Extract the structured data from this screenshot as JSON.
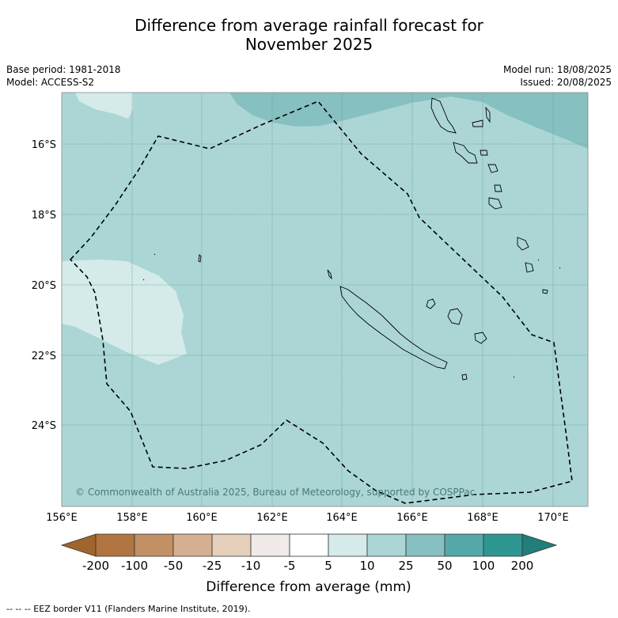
{
  "header": {
    "title_line1": "Difference from average rainfall forecast for",
    "title_line2": "November 2025",
    "base_period": "Base period: 1981-2018",
    "model": "Model: ACCESS-S2",
    "model_run": "Model run: 18/08/2025",
    "issued": "Issued: 20/08/2025"
  },
  "map": {
    "lon_labels": [
      "156°E",
      "158°E",
      "160°E",
      "162°E",
      "164°E",
      "166°E",
      "168°E",
      "170°E"
    ],
    "lat_labels": [
      "16°S",
      "18°S",
      "20°S",
      "22°S",
      "24°S"
    ],
    "copyright": "© Commonwealth of Australia 2025, Bureau of Meteorology, supported by COSPPac",
    "colors": {
      "background_10_25": "#acd6d6",
      "band_5_10": "#d4ebea",
      "band_25_50": "#86c0c0"
    }
  },
  "colorbar": {
    "title": "Difference from average (mm)",
    "tick_labels": [
      "-200",
      "-100",
      "-50",
      "-25",
      "-10",
      "-5",
      "5",
      "10",
      "25",
      "50",
      "100",
      "200"
    ],
    "colors": [
      "#a0652d",
      "#b07540",
      "#c39065",
      "#d4b090",
      "#e6d0bc",
      "#f0ebe8",
      "#ffffff",
      "#d4ebea",
      "#acd6d6",
      "#86c0c0",
      "#55a8a8",
      "#2f9792",
      "#217e7a"
    ]
  },
  "footer": {
    "legend": "-- -- -- EEZ border V11 (Flanders Marine Institute, 2019)."
  }
}
